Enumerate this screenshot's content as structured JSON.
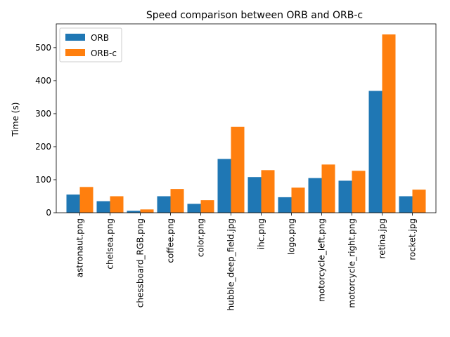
{
  "chart_data": {
    "type": "bar",
    "title": "Speed comparison between ORB and ORB-c",
    "xlabel": "",
    "ylabel": "Time (s)",
    "ylim": [
      0,
      572
    ],
    "yticks": [
      0,
      100,
      200,
      300,
      400,
      500
    ],
    "grid": false,
    "legend_position": "top-left",
    "categories": [
      "astronaut.png",
      "chelsea.png",
      "chessboard_RGB.png",
      "coffee.png",
      "color.png",
      "hubble_deep_field.jpg",
      "ihc.png",
      "logo.png",
      "motorcycle_left.png",
      "motorcycle_right.png",
      "retina.jpg",
      "rocket.jpg"
    ],
    "series": [
      {
        "name": "ORB",
        "color": "#1f77b4",
        "values": [
          55,
          35,
          6,
          50,
          27,
          163,
          108,
          47,
          105,
          97,
          369,
          50
        ]
      },
      {
        "name": "ORB-c",
        "color": "#ff7f0e",
        "values": [
          78,
          50,
          10,
          72,
          38,
          260,
          129,
          76,
          146,
          127,
          540,
          70
        ]
      }
    ]
  }
}
